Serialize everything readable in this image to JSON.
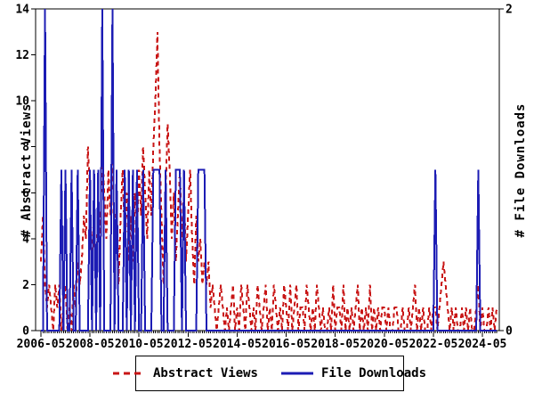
{
  "figure": {
    "left_axis_title": "# Abstract Views",
    "right_axis_title": "# File Downloads"
  },
  "legend": {
    "items": [
      {
        "label": "Abstract Views",
        "color": "#c81616",
        "style": "dashed"
      },
      {
        "label": "File Downloads",
        "color": "#1c1cb4",
        "style": "solid"
      }
    ]
  },
  "chart_data": {
    "type": "line",
    "title": "",
    "x_start_month": "2006-05",
    "x_months_total": 224,
    "x_tick_labels": [
      "2006-05",
      "2008-05",
      "2010-05",
      "2012-05",
      "2014-05",
      "2016-05",
      "2018-05",
      "2020-05",
      "2022-05",
      "2024-05"
    ],
    "x_tick_month_indices": [
      0,
      24,
      48,
      72,
      96,
      120,
      144,
      168,
      192,
      216
    ],
    "left_axis": {
      "label": "# Abstract Views",
      "min": 0,
      "max": 14,
      "ticks": [
        0,
        2,
        4,
        6,
        8,
        10,
        12,
        14
      ]
    },
    "right_axis": {
      "label": "# File Downloads",
      "min": 0,
      "max": 2,
      "ticks": [
        0,
        2
      ]
    },
    "grid": false,
    "legend_position": "bottom-center",
    "series": [
      {
        "name": "Abstract Views",
        "axis": "left",
        "color": "#c81616",
        "style": "dashed",
        "values": [
          3,
          5,
          2,
          1,
          2,
          1,
          0,
          2,
          1,
          2,
          0,
          1,
          2,
          0,
          1,
          0,
          2,
          1,
          3,
          2,
          3,
          5,
          4,
          8,
          6,
          3,
          5,
          2,
          6,
          4,
          8,
          6,
          4,
          7,
          5,
          8,
          3,
          6,
          2,
          5,
          7,
          4,
          6,
          3,
          5,
          3,
          6,
          4,
          7,
          5,
          8,
          6,
          4,
          7,
          5,
          8,
          10,
          13,
          8,
          5,
          2,
          6,
          9,
          7,
          4,
          6,
          3,
          5,
          7,
          4,
          6,
          3,
          5,
          7,
          4,
          2,
          5,
          3,
          4,
          2,
          3,
          2,
          3,
          1,
          2,
          1,
          0,
          1,
          2,
          1,
          0,
          1,
          0,
          1,
          2,
          0,
          1,
          0,
          2,
          1,
          0,
          2,
          1,
          0,
          1,
          0,
          2,
          1,
          0,
          1,
          2,
          0,
          1,
          0,
          2,
          1,
          0,
          1,
          0,
          2,
          1,
          0,
          2,
          0,
          1,
          2,
          0,
          1,
          1,
          0,
          2,
          1,
          0,
          1,
          0,
          2,
          1,
          0,
          1,
          0,
          0,
          1,
          0,
          2,
          0,
          1,
          1,
          0,
          2,
          0,
          1,
          0,
          1,
          0,
          1,
          2,
          0,
          1,
          0,
          1,
          0,
          2,
          0,
          1,
          0,
          1,
          0,
          1,
          1,
          0,
          1,
          0,
          0,
          1,
          1,
          0,
          0,
          1,
          0,
          0,
          1,
          0,
          1,
          2,
          0,
          1,
          0,
          1,
          0,
          0,
          1,
          0,
          1,
          1,
          0,
          1,
          2,
          3,
          2,
          1,
          0,
          1,
          0,
          1,
          0,
          0,
          1,
          0,
          1,
          0,
          1,
          0,
          0,
          1,
          2,
          0,
          1,
          0,
          0,
          1,
          0,
          1,
          0,
          1
        ]
      },
      {
        "name": "File Downloads",
        "axis": "right",
        "color": "#1c1cb4",
        "style": "solid",
        "values": [
          0,
          0,
          2,
          0,
          0,
          0,
          0,
          0,
          0,
          0,
          1,
          0,
          1,
          0,
          0,
          1,
          0,
          0,
          1,
          0,
          0,
          0,
          0,
          0,
          1,
          0,
          1,
          0,
          1,
          0,
          2,
          0,
          0,
          0,
          0,
          2,
          0,
          1,
          0,
          0,
          0,
          1,
          0,
          1,
          0,
          1,
          0,
          1,
          0,
          0,
          1,
          0,
          0,
          0,
          0,
          1,
          1,
          1,
          1,
          0,
          0,
          1,
          0,
          0,
          0,
          0,
          1,
          1,
          1,
          0,
          1,
          0,
          0,
          0,
          0,
          0,
          0,
          1,
          1,
          1,
          1,
          0,
          0,
          0,
          0,
          0,
          0,
          0,
          0,
          0,
          0,
          0,
          0,
          0,
          0,
          0,
          0,
          0,
          0,
          0,
          0,
          0,
          0,
          0,
          0,
          0,
          0,
          0,
          0,
          0,
          0,
          0,
          0,
          0,
          0,
          0,
          0,
          0,
          0,
          0,
          0,
          0,
          0,
          0,
          0,
          0,
          0,
          0,
          0,
          0,
          0,
          0,
          0,
          0,
          0,
          0,
          0,
          0,
          0,
          0,
          0,
          0,
          0,
          0,
          0,
          0,
          0,
          0,
          0,
          0,
          0,
          0,
          0,
          0,
          0,
          0,
          0,
          0,
          0,
          0,
          0,
          0,
          0,
          0,
          0,
          0,
          0,
          0,
          0,
          0,
          0,
          0,
          0,
          0,
          0,
          0,
          0,
          0,
          0,
          0,
          0,
          0,
          0,
          0,
          0,
          0,
          0,
          0,
          0,
          0,
          0,
          0,
          0,
          1,
          0,
          0,
          0,
          0,
          0,
          0,
          0,
          0,
          0,
          0,
          0,
          0,
          0,
          0,
          0,
          0,
          0,
          0,
          0,
          0,
          1,
          0,
          0,
          0,
          0,
          0,
          0,
          0,
          0,
          0
        ]
      }
    ]
  }
}
